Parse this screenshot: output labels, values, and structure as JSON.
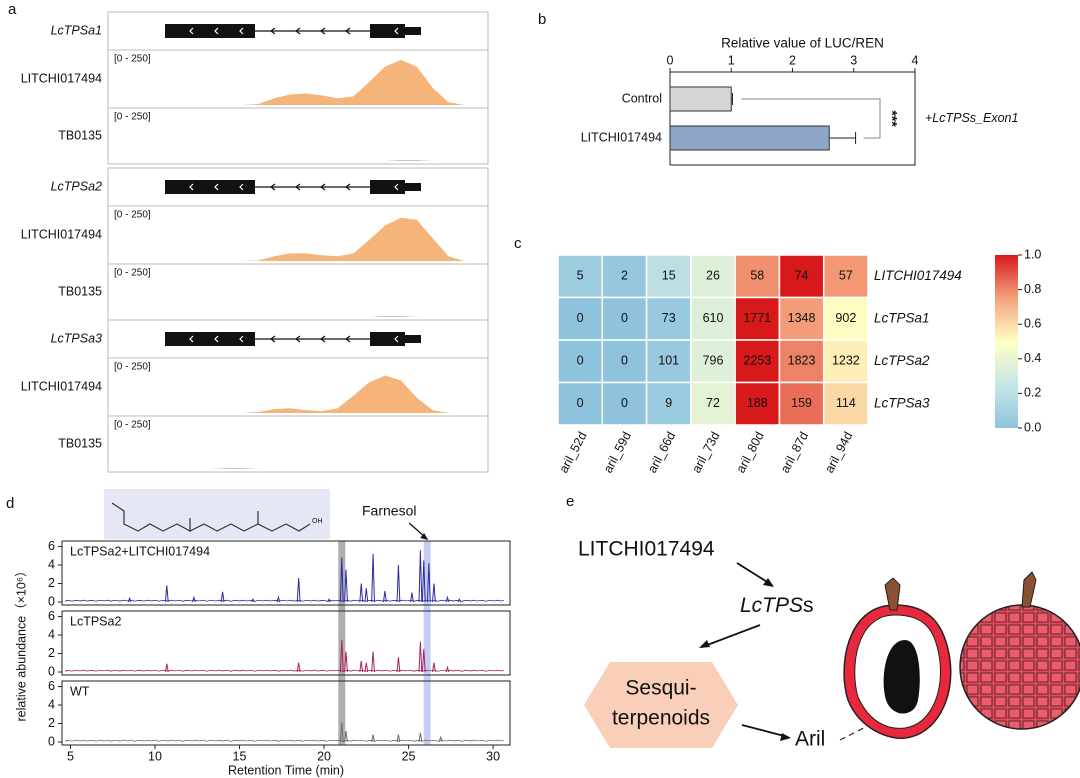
{
  "panel_labels": [
    "a",
    "b",
    "c",
    "d",
    "e"
  ],
  "chart_data": [
    {
      "type": "coverage",
      "ylim": [
        0,
        250
      ],
      "groups": [
        {
          "gene": "LcTPSa1",
          "tracks": [
            {
              "name": "LITCHI017494",
              "range": "[0 - 250]",
              "color": "#f5b47a",
              "values": [
                0,
                0,
                0,
                0,
                0,
                0,
                0,
                0,
                0,
                5,
                35,
                55,
                60,
                50,
                35,
                45,
                120,
                200,
                235,
                200,
                90,
                15,
                0,
                0
              ]
            },
            {
              "name": "TB0135",
              "range": "[0 - 250]",
              "color": "#b0b0b0",
              "values": [
                0,
                0,
                0,
                0,
                0,
                0,
                0,
                0,
                0,
                0,
                0,
                0,
                0,
                0,
                0,
                0,
                0,
                0,
                4,
                4,
                0,
                0,
                0,
                0
              ]
            }
          ]
        },
        {
          "gene": "LcTPSa2",
          "tracks": [
            {
              "name": "LITCHI017494",
              "range": "[0 - 250]",
              "color": "#f5b47a",
              "values": [
                0,
                0,
                0,
                0,
                0,
                0,
                0,
                0,
                0,
                3,
                25,
                40,
                40,
                30,
                25,
                40,
                110,
                185,
                225,
                215,
                120,
                25,
                0,
                0
              ]
            },
            {
              "name": "TB0135",
              "range": "[0 - 250]",
              "color": "#b0b0b0",
              "values": [
                0,
                0,
                0,
                0,
                0,
                0,
                0,
                0,
                0,
                0,
                0,
                0,
                0,
                0,
                0,
                0,
                0,
                4,
                4,
                0,
                0,
                0,
                0,
                0
              ]
            }
          ]
        },
        {
          "gene": "LcTPSa3",
          "tracks": [
            {
              "name": "LITCHI017494",
              "range": "[0 - 250]",
              "color": "#f5b47a",
              "values": [
                0,
                0,
                0,
                0,
                0,
                0,
                0,
                0,
                0,
                5,
                20,
                25,
                15,
                10,
                25,
                90,
                160,
                195,
                170,
                80,
                15,
                0,
                0,
                0
              ]
            },
            {
              "name": "TB0135",
              "range": "[0 - 250]",
              "color": "#b0b0b0",
              "values": [
                0,
                0,
                0,
                0,
                0,
                0,
                0,
                4,
                4,
                0,
                0,
                0,
                0,
                0,
                0,
                0,
                0,
                0,
                0,
                0,
                0,
                0,
                0,
                0
              ]
            }
          ]
        }
      ]
    },
    {
      "type": "bar",
      "orientation": "horizontal",
      "title": "Relative value of LUC/REN",
      "categories": [
        "Control",
        "LITCHI017494"
      ],
      "values": [
        1.0,
        2.6
      ],
      "errors": [
        0.02,
        0.43
      ],
      "colors": [
        "#d6d6d6",
        "#8ea5c8"
      ],
      "xlim": [
        0,
        4
      ],
      "xticks": [
        0,
        1,
        2,
        3,
        4
      ],
      "annotation": "***",
      "group_label": "+LcTPSs_Exon1"
    },
    {
      "type": "heatmap",
      "rows": [
        "LITCHI017494",
        "LcTPSa1",
        "LcTPSa2",
        "LcTPSa3"
      ],
      "columns": [
        "aril_52d",
        "aril_59d",
        "aril_66d",
        "aril_73d",
        "aril_80d",
        "aril_87d",
        "aril_94d"
      ],
      "values": [
        [
          5,
          2,
          15,
          26,
          58,
          74,
          57
        ],
        [
          0,
          0,
          73,
          610,
          1771,
          1348,
          902
        ],
        [
          0,
          0,
          101,
          796,
          2253,
          1823,
          1232
        ],
        [
          0,
          0,
          9,
          72,
          188,
          159,
          114
        ]
      ],
      "clim": [
        0,
        1
      ],
      "cticks": [
        {
          "value": 0,
          "label": "0.0"
        },
        {
          "value": 0.2,
          "label": "0.2"
        },
        {
          "value": 0.4,
          "label": "0.4"
        },
        {
          "value": 0.6,
          "label": "0.6"
        },
        {
          "value": 0.8,
          "label": "0.8"
        },
        {
          "value": 1,
          "label": "1.0"
        }
      ]
    },
    {
      "type": "chromatogram",
      "xlabel": "Retention Time (min)",
      "ylabel": "relative abundance（×10⁶）",
      "xlim": [
        4.5,
        31
      ],
      "xticks": [
        5,
        10,
        15,
        20,
        25,
        30
      ],
      "ylim": [
        0,
        6.6
      ],
      "yticks": [
        0,
        2,
        4,
        6
      ],
      "highlights": [
        {
          "x": 21.05,
          "color": "#9a9a9a"
        },
        {
          "x": 26.1,
          "color": "#b8c0f0"
        }
      ],
      "annotation": "Farnesol",
      "molecule_group": "OH",
      "series": [
        {
          "name": "LcTPSa2+LITCHI017494",
          "color": "#2a2aa8",
          "x": [
            8.5,
            10.7,
            12.3,
            14,
            15.8,
            17.3,
            18.5,
            20.3,
            21.05,
            21.3,
            22.2,
            22.5,
            22.9,
            23.6,
            24.4,
            25.2,
            25.7,
            25.9,
            26.2,
            26.5,
            27.3,
            28
          ],
          "values": [
            0.4,
            1.8,
            0.5,
            1.1,
            0.3,
            0.5,
            2.6,
            0.3,
            4.8,
            3.5,
            2.0,
            1.5,
            5.2,
            1.2,
            4.0,
            1.0,
            5.6,
            4.5,
            4.2,
            2.0,
            0.5,
            0.3
          ]
        },
        {
          "name": "LcTPSa2",
          "color": "#a8235e",
          "x": [
            10.7,
            18.5,
            21.05,
            21.3,
            22.2,
            22.5,
            22.9,
            24.4,
            25.7,
            25.9,
            26.5,
            27.3
          ],
          "values": [
            0.9,
            1.0,
            3.5,
            2.2,
            1.2,
            1.0,
            2.2,
            1.6,
            3.3,
            2.5,
            1.0,
            0.5
          ]
        },
        {
          "name": "WT",
          "color": "#6e6e6e",
          "x": [
            21.05,
            21.3,
            22.9,
            24.4,
            25.7,
            26.9
          ],
          "values": [
            2.1,
            1.2,
            0.8,
            0.8,
            1.0,
            0.6
          ]
        }
      ]
    }
  ],
  "diagram": {
    "source": "LITCHI017494",
    "enzyme": [
      "LcTPS",
      "s"
    ],
    "product": [
      "Sesqui-",
      "terpenoids"
    ],
    "target": "Aril"
  }
}
